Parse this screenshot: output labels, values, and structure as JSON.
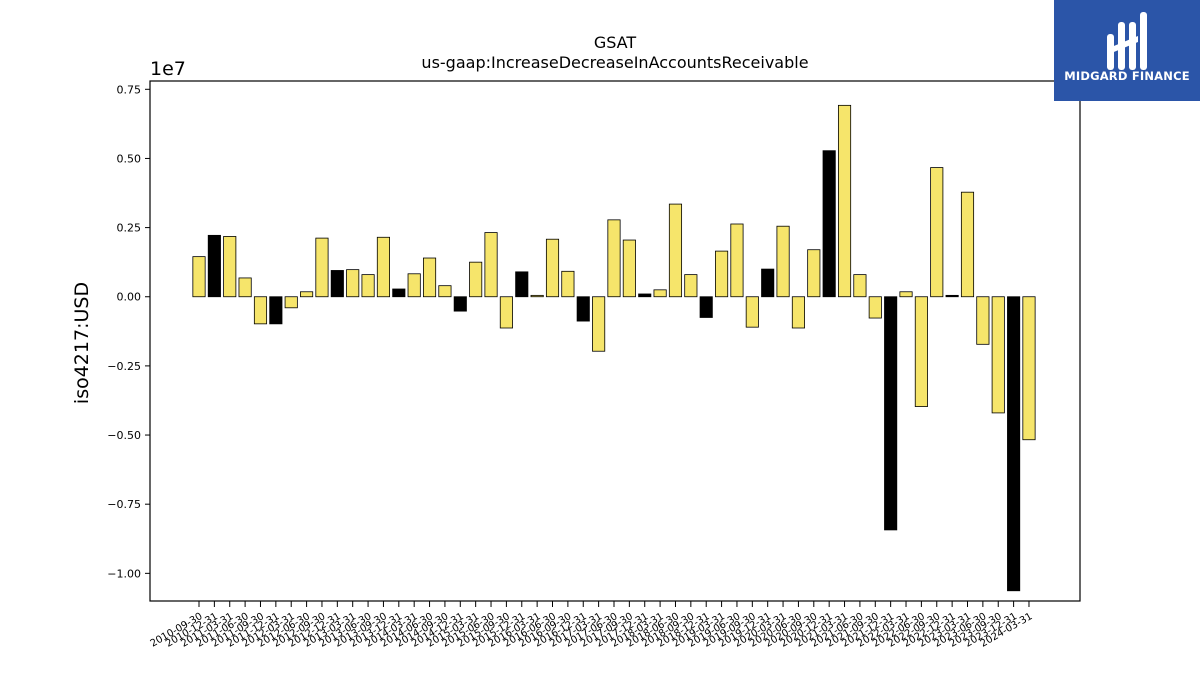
{
  "chart_data": {
    "type": "bar",
    "title": "GSAT",
    "subtitle": "us-gaap:IncreaseDecreaseInAccountsReceivable",
    "ylabel": "iso4217:USD",
    "xlabel": "",
    "y_scale_label": "1e7",
    "ylim": [
      -1.1,
      0.78
    ],
    "y_ticks": [
      0.75,
      0.5,
      0.25,
      0.0,
      -0.25,
      -0.5,
      -0.75,
      -1.0
    ],
    "y_tick_labels": [
      "0.75",
      "0.50",
      "0.25",
      "0.00",
      "−0.25",
      "−0.50",
      "−0.75",
      "−1.00"
    ],
    "x_tick_labels": [
      "2010-09-30",
      "2010-12-31",
      "2011-03-31",
      "2011-06-30",
      "2011-09-30",
      "2011-12-31",
      "2012-03-31",
      "2012-06-30",
      "2012-09-30",
      "2012-12-31",
      "2013-03-31",
      "2013-06-30",
      "2013-09-30",
      "2013-12-31",
      "2014-03-31",
      "2014-06-30",
      "2014-09-30",
      "2014-12-31",
      "2015-03-31",
      "2015-06-30",
      "2015-09-30",
      "2015-12-31",
      "2016-03-31",
      "2016-06-30",
      "2016-09-30",
      "2016-12-31",
      "2017-03-31",
      "2017-06-30",
      "2017-09-30",
      "2017-12-31",
      "2018-03-31",
      "2018-06-30",
      "2018-09-30",
      "2018-12-31",
      "2019-03-31",
      "2019-06-30",
      "2019-09-30",
      "2019-12-31",
      "2020-03-31",
      "2020-06-30",
      "2020-09-30",
      "2020-12-31",
      "2021-03-31",
      "2021-06-30",
      "2021-09-30",
      "2021-12-31",
      "2022-03-31",
      "2022-06-30",
      "2022-09-30",
      "2022-12-31",
      "2023-03-31",
      "2023-06-30",
      "2023-09-30",
      "2023-12-31",
      "2024-03-31"
    ],
    "values": [
      0.145,
      0.222,
      0.218,
      0.068,
      -0.098,
      -0.098,
      -0.04,
      0.018,
      0.212,
      0.095,
      0.098,
      0.08,
      0.215,
      0.028,
      0.083,
      0.14,
      0.04,
      -0.052,
      0.125,
      0.232,
      -0.113,
      0.09,
      0.005,
      0.208,
      0.092,
      -0.088,
      -0.197,
      0.278,
      0.205,
      0.01,
      0.025,
      0.335,
      0.08,
      -0.075,
      0.165,
      0.263,
      -0.11,
      0.1,
      0.255,
      -0.113,
      0.17,
      0.528,
      0.692,
      0.08,
      -0.077,
      -0.843,
      0.018,
      -0.397,
      0.467,
      0.005,
      0.378,
      -0.172,
      -0.42,
      -1.063,
      -0.517
    ],
    "bar_colors": [
      "#f6e56b",
      "#000000",
      "#f6e56b",
      "#f6e56b",
      "#f6e56b",
      "#000000",
      "#f6e56b",
      "#f6e56b",
      "#f6e56b",
      "#000000",
      "#f6e56b",
      "#f6e56b",
      "#f6e56b",
      "#000000",
      "#f6e56b",
      "#f6e56b",
      "#f6e56b",
      "#000000",
      "#f6e56b",
      "#f6e56b",
      "#f6e56b",
      "#000000",
      "#f6e56b",
      "#f6e56b",
      "#f6e56b",
      "#000000",
      "#f6e56b",
      "#f6e56b",
      "#f6e56b",
      "#000000",
      "#f6e56b",
      "#f6e56b",
      "#f6e56b",
      "#000000",
      "#f6e56b",
      "#f6e56b",
      "#f6e56b",
      "#000000",
      "#f6e56b",
      "#f6e56b",
      "#f6e56b",
      "#000000",
      "#f6e56b",
      "#f6e56b",
      "#f6e56b",
      "#000000",
      "#f6e56b",
      "#f6e56b",
      "#f6e56b",
      "#000000",
      "#f6e56b",
      "#f6e56b",
      "#f6e56b",
      "#000000",
      "#f6e56b"
    ],
    "grid": false,
    "legend": "none"
  },
  "logo": {
    "text": "MIDGARD FINANCE",
    "background": "#2b55a8",
    "icon": "midgard-logo-icon"
  }
}
